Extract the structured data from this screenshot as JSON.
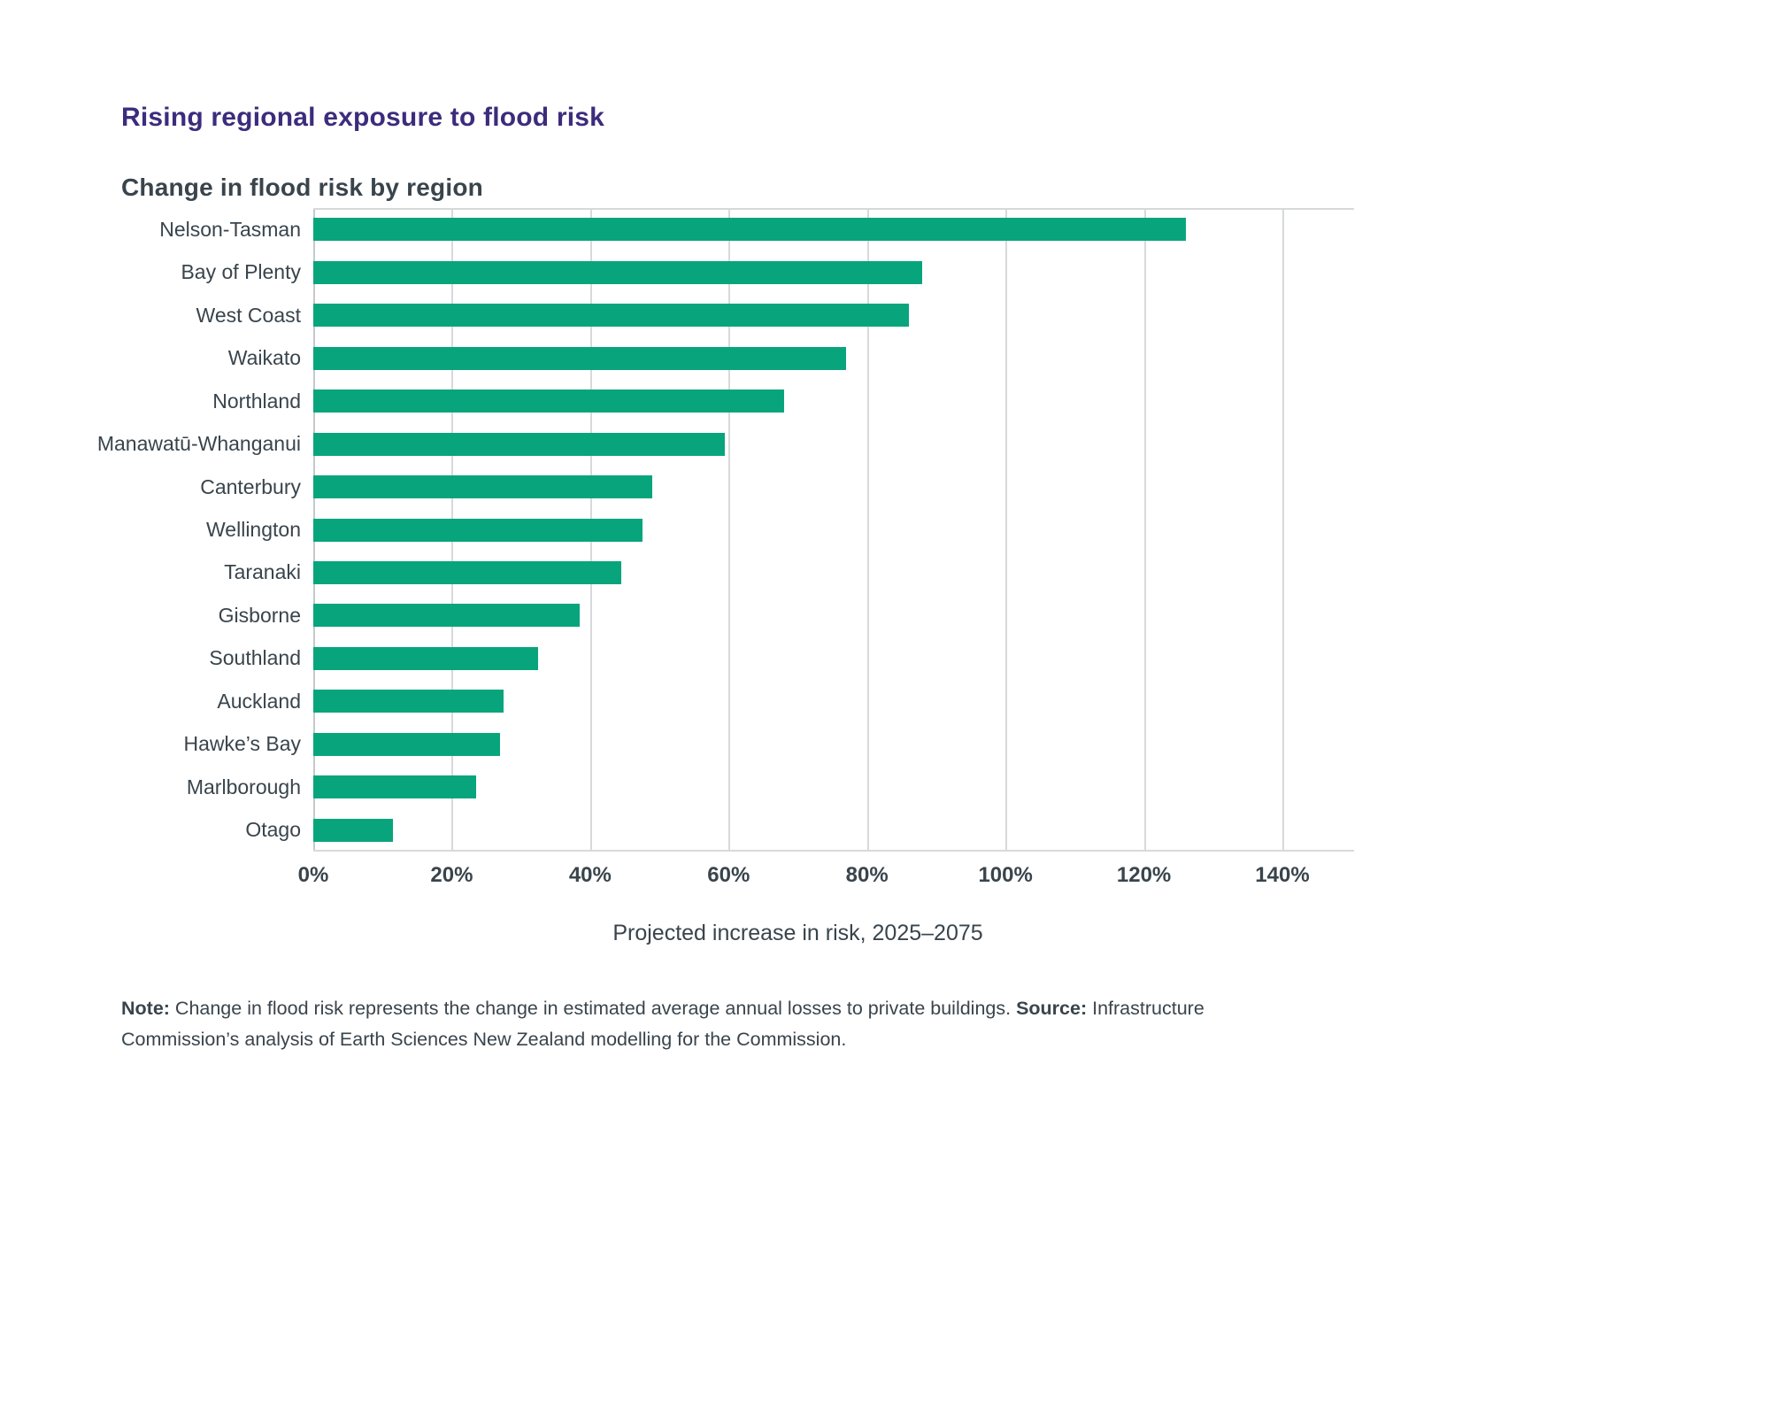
{
  "page": {
    "background": "#ffffff",
    "text_color": "#39444C"
  },
  "title": {
    "text": "Rising regional exposure to flood risk",
    "color": "#3C2C7D"
  },
  "subtitle": {
    "text": "Change in flood risk by region",
    "color": "#39444C"
  },
  "chart_data": {
    "type": "bar",
    "orientation": "horizontal",
    "title": "Change in flood risk by region",
    "categories": [
      "Nelson-Tasman",
      "Bay of Plenty",
      "West Coast",
      "Waikato",
      "Northland",
      "Manawatū-Whanganui",
      "Canterbury",
      "Wellington",
      "Taranaki",
      "Gisborne",
      "Southland",
      "Auckland",
      "Hawke’s Bay",
      "Marlborough",
      "Otago"
    ],
    "values": [
      126,
      88,
      86,
      77,
      68,
      59.5,
      49,
      47.5,
      44.5,
      38.5,
      32.5,
      27.5,
      27,
      23.5,
      11.5
    ],
    "unit": "%",
    "xlabel": "Projected increase in risk, 2025–2075",
    "xlim": [
      0,
      140
    ],
    "x_ticks": [
      "0%",
      "20%",
      "40%",
      "60%",
      "80%",
      "100%",
      "120%",
      "140%"
    ],
    "legend": "none",
    "grid": "vertical",
    "bar_color": "#08A57D",
    "gridline_color": "#D7D9DB",
    "axis_line_color": "#C5C9CC",
    "label_color": "#39444C"
  },
  "note": {
    "label": "Note:",
    "text": " Change in flood risk represents the change in estimated average annual losses to private buildings. ",
    "source_label": "Source:",
    "source_text": " Infrastructure Commission’s analysis of Earth Sciences New Zealand modelling for the Commission."
  }
}
